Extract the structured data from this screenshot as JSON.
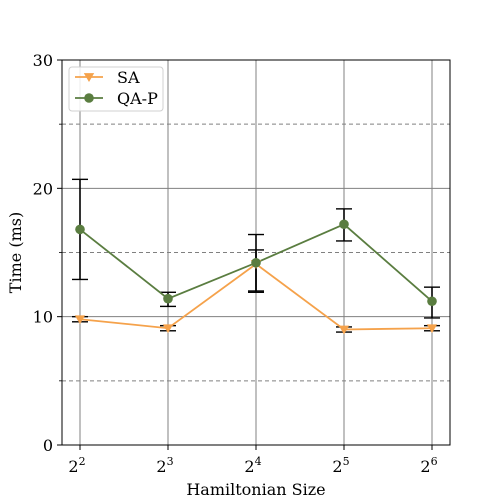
{
  "chart_data": {
    "type": "line",
    "title": "",
    "xlabel": "Hamiltonian Size",
    "ylabel": "Time (ms)",
    "x_base": "2",
    "x_exponents": [
      "2",
      "3",
      "4",
      "5",
      "6"
    ],
    "ylim": [
      0,
      30
    ],
    "y_major_ticks": [
      0,
      10,
      20,
      30
    ],
    "y_minor_ticks": [
      5,
      15,
      25
    ],
    "grid": true,
    "legend_position": "top-left",
    "series": [
      {
        "name": "SA",
        "color": "#f5a24b",
        "marker": "triangle-down",
        "values": [
          9.8,
          9.1,
          14.1,
          9.0,
          9.1
        ],
        "err_low": [
          9.6,
          8.9,
          11.9,
          8.8,
          8.9
        ],
        "err_high": [
          10.0,
          9.3,
          15.2,
          9.2,
          9.3
        ]
      },
      {
        "name": "QA-P",
        "color": "#5a7d40",
        "marker": "circle",
        "values": [
          16.8,
          11.4,
          14.2,
          17.2,
          11.2
        ],
        "err_low": [
          12.9,
          10.8,
          12.0,
          15.9,
          9.9
        ],
        "err_high": [
          20.7,
          11.9,
          16.4,
          18.4,
          12.3
        ]
      }
    ]
  }
}
